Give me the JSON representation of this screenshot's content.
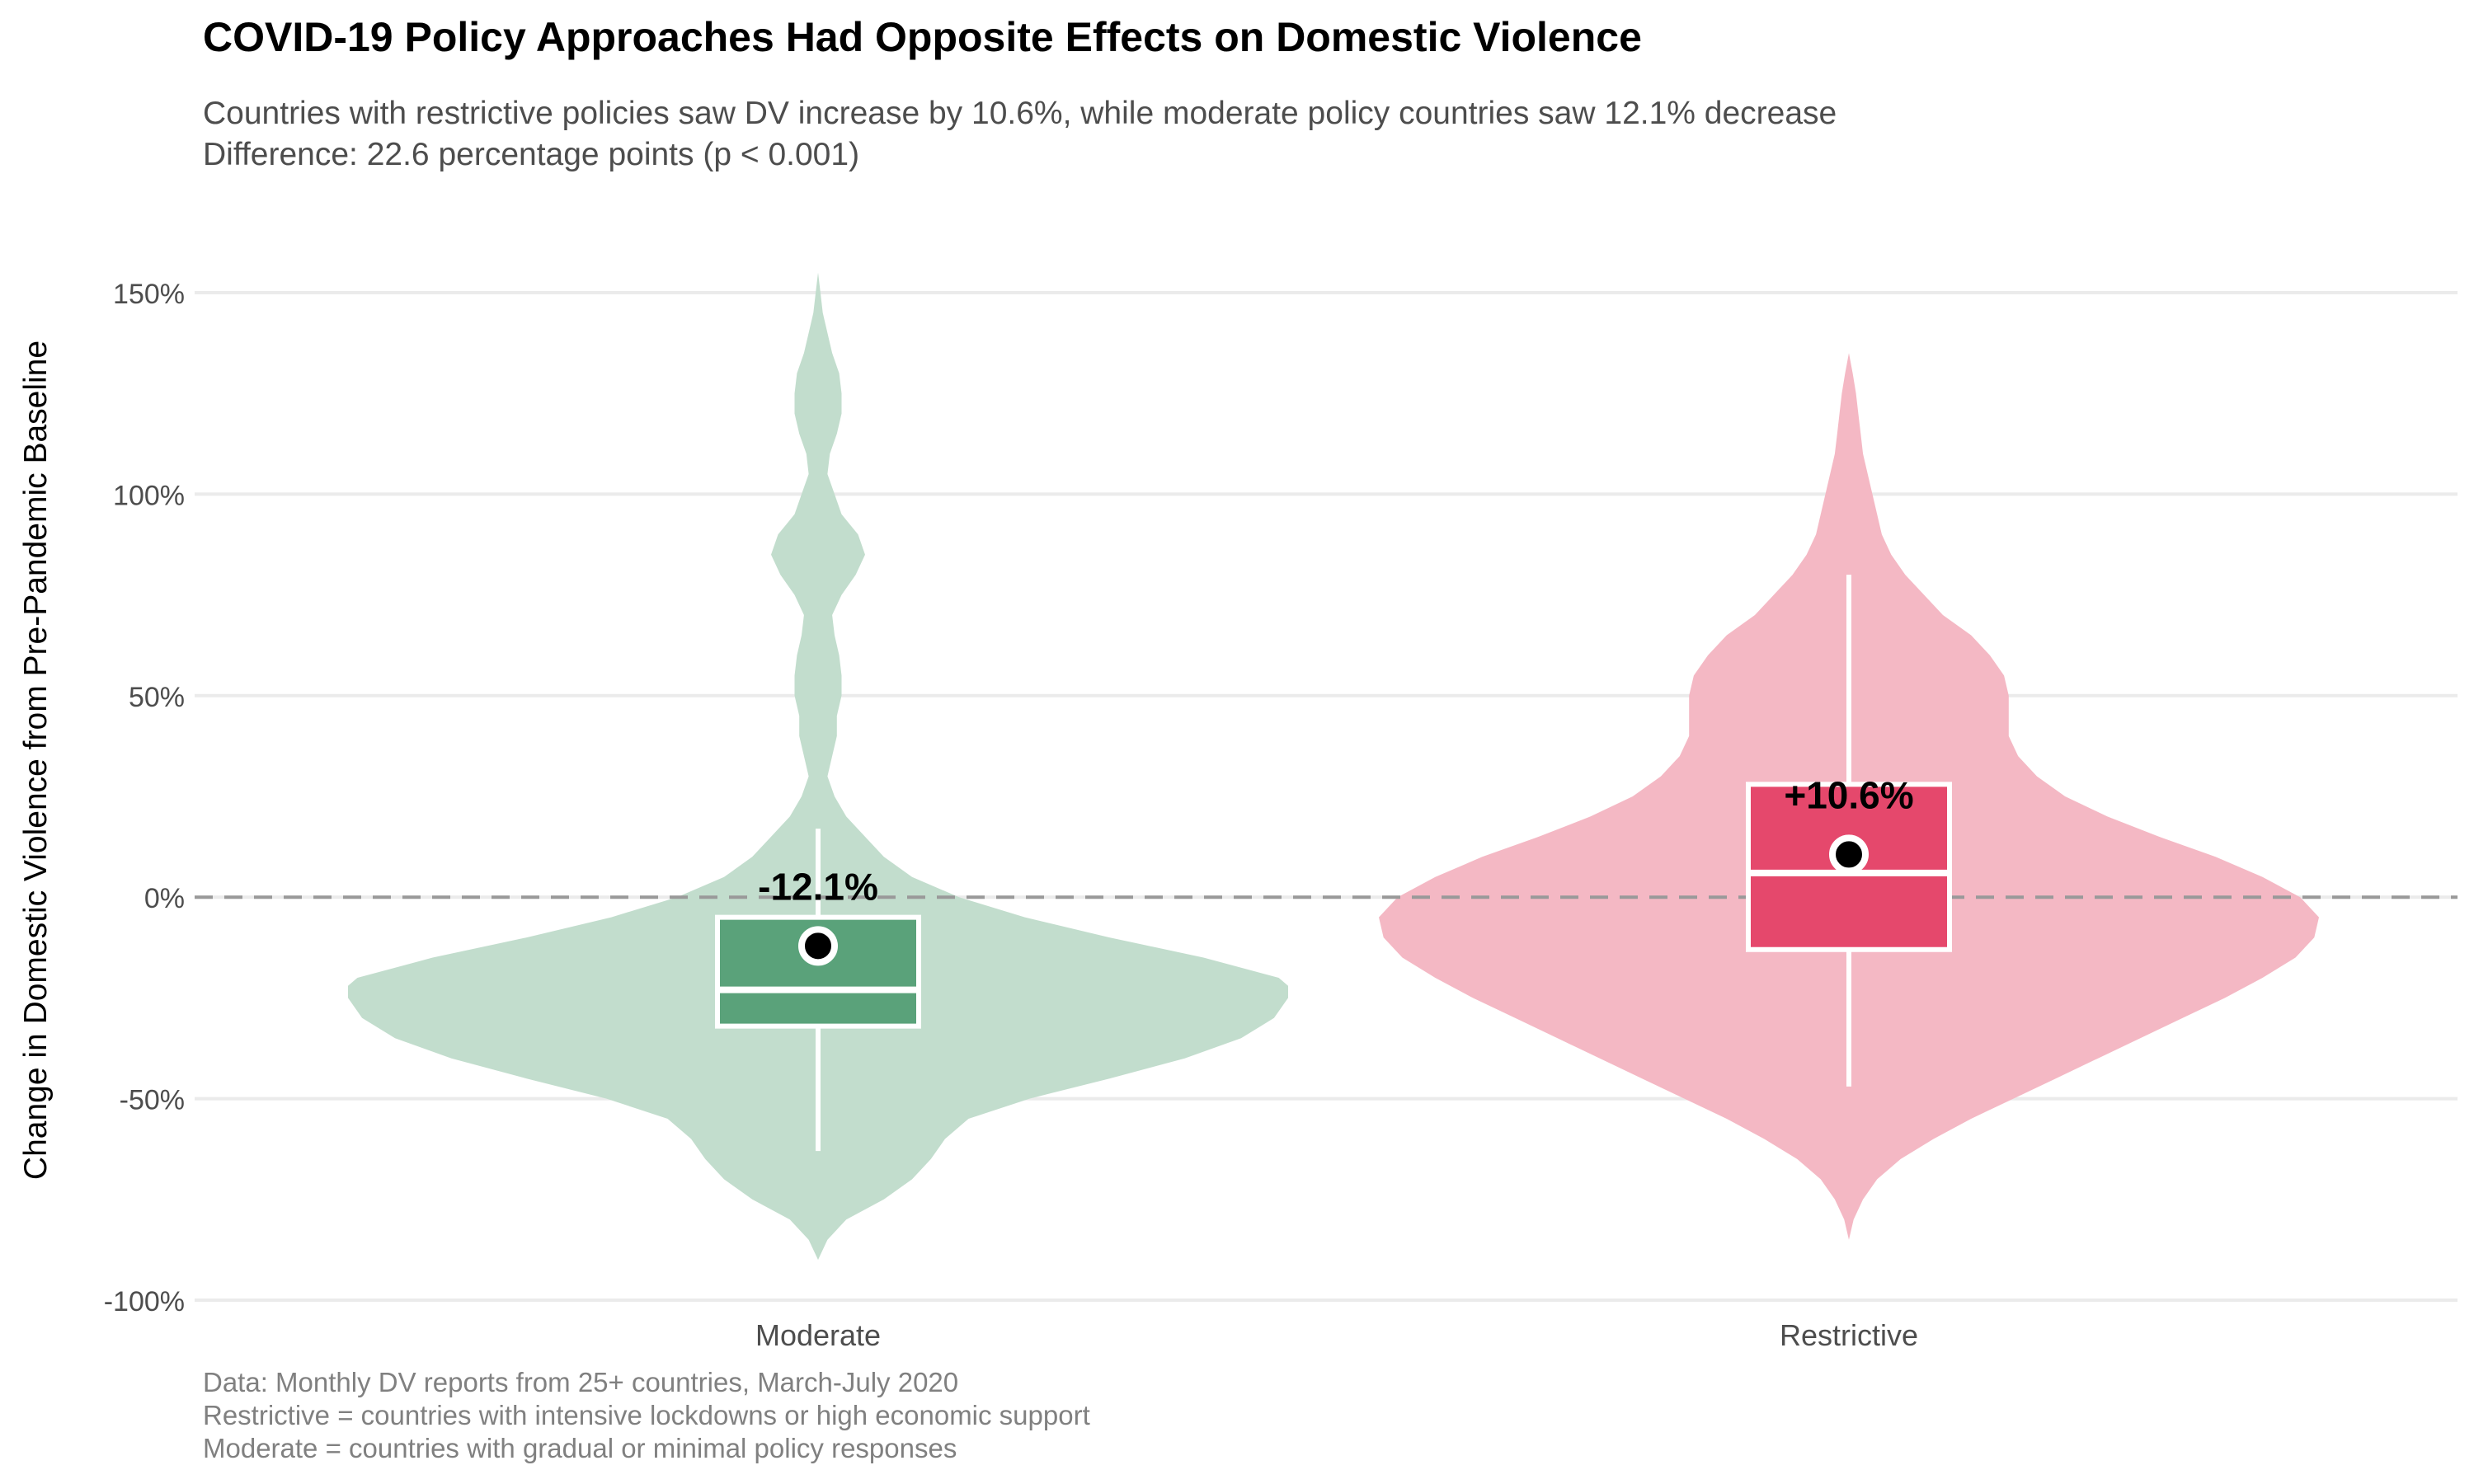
{
  "chart_data": {
    "type": "violin",
    "title": "COVID-19 Policy Approaches Had Opposite Effects on Domestic Violence",
    "subtitle_lines": [
      "Countries with restrictive policies saw DV increase by 10.6%, while moderate policy countries saw 12.1% decrease",
      "Difference: 22.6 percentage points (p < 0.001)"
    ],
    "xlabel": "",
    "ylabel": "Change in Domestic Violence from Pre-Pandemic Baseline",
    "ylim": [
      -100,
      150
    ],
    "y_ticks": [
      -100,
      -50,
      0,
      50,
      100,
      150
    ],
    "y_tick_labels": [
      "-100%",
      "-50%",
      "0%",
      "50%",
      "100%",
      "150%"
    ],
    "reference_line": 0,
    "grid": "horizontal",
    "legend": "none",
    "categories": [
      "Moderate",
      "Restrictive"
    ],
    "series": [
      {
        "category": "Moderate",
        "fill_color": "#c2ddcd",
        "box_color": "#5aa27a",
        "density_y": [
          -90,
          -85,
          -80,
          -75,
          -70,
          -65,
          -60,
          -55,
          -50,
          -45,
          -40,
          -35,
          -30,
          -25,
          -22,
          -20,
          -15,
          -10,
          -5,
          0,
          5,
          10,
          15,
          20,
          25,
          30,
          35,
          40,
          45,
          50,
          55,
          60,
          65,
          70,
          75,
          80,
          85,
          90,
          95,
          100,
          105,
          110,
          115,
          120,
          125,
          130,
          135,
          140,
          145,
          150,
          155
        ],
        "density_w": [
          0,
          0.02,
          0.06,
          0.14,
          0.2,
          0.24,
          0.27,
          0.32,
          0.45,
          0.62,
          0.78,
          0.9,
          0.97,
          1.0,
          1.0,
          0.98,
          0.82,
          0.62,
          0.44,
          0.3,
          0.2,
          0.14,
          0.1,
          0.06,
          0.035,
          0.02,
          0.03,
          0.04,
          0.04,
          0.05,
          0.05,
          0.045,
          0.035,
          0.03,
          0.05,
          0.08,
          0.1,
          0.085,
          0.05,
          0.035,
          0.02,
          0.025,
          0.04,
          0.05,
          0.05,
          0.045,
          0.03,
          0.02,
          0.01,
          0.005,
          0
        ],
        "box": {
          "whisker_low": -63,
          "q1": -32,
          "median": -23,
          "q3": -5,
          "whisker_high": 17
        },
        "mean": -12.1,
        "mean_label": "-12.1%"
      },
      {
        "category": "Restrictive",
        "fill_color": "#f4b8c4",
        "box_color": "#e5486c",
        "density_y": [
          -85,
          -80,
          -75,
          -70,
          -65,
          -60,
          -55,
          -50,
          -45,
          -40,
          -35,
          -30,
          -25,
          -20,
          -15,
          -10,
          -5,
          0,
          5,
          10,
          15,
          20,
          25,
          30,
          35,
          40,
          45,
          50,
          55,
          60,
          65,
          70,
          75,
          80,
          85,
          90,
          95,
          100,
          105,
          110,
          115,
          120,
          125,
          130,
          135
        ],
        "density_w": [
          0,
          0.01,
          0.03,
          0.06,
          0.11,
          0.18,
          0.26,
          0.35,
          0.44,
          0.53,
          0.62,
          0.71,
          0.8,
          0.88,
          0.95,
          0.99,
          1.0,
          0.96,
          0.88,
          0.78,
          0.66,
          0.55,
          0.46,
          0.4,
          0.36,
          0.34,
          0.34,
          0.34,
          0.33,
          0.3,
          0.26,
          0.2,
          0.16,
          0.12,
          0.09,
          0.07,
          0.06,
          0.05,
          0.04,
          0.03,
          0.025,
          0.02,
          0.015,
          0.008,
          0
        ],
        "box": {
          "whisker_low": -47,
          "q1": -13,
          "median": 6,
          "q3": 28,
          "whisker_high": 80
        },
        "mean": 10.6,
        "mean_label": "+10.6%"
      }
    ],
    "caption_lines": [
      "Data: Monthly DV reports from 25+ countries, March-July 2020",
      "Restrictive = countries with intensive lockdowns or high economic support",
      "Moderate = countries with gradual or minimal policy responses"
    ]
  }
}
